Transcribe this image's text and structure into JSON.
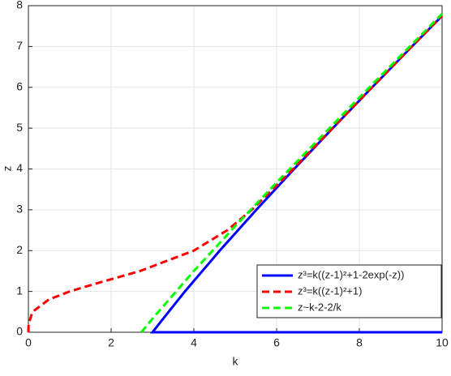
{
  "chart_data": {
    "type": "line",
    "x_label": "k",
    "y_label": "z",
    "xlim": [
      0,
      10
    ],
    "ylim": [
      0,
      8
    ],
    "xticks": [
      0,
      2,
      4,
      6,
      8,
      10
    ],
    "yticks": [
      0,
      1,
      2,
      3,
      4,
      5,
      6,
      7,
      8
    ],
    "grid": true,
    "legend": "lower right",
    "series": [
      {
        "name": "z³=k((z-1)²+1-2exp(-z))",
        "color": "#0000ff",
        "dash": "solid",
        "x": [
          10,
          3,
          3.39,
          3.785,
          4.626,
          5.51,
          6.424,
          7.359,
          8.309,
          9.27,
          10
        ],
        "values": [
          0,
          0,
          0.5,
          1,
          2,
          3,
          4,
          5,
          6,
          7,
          7.75
        ]
      },
      {
        "name": "z³=k((z-1)²+1)",
        "color": "#ff0000",
        "dash": "dashed",
        "x": [
          0,
          0.0049,
          0.1,
          0.492,
          1,
          1.66,
          2.7,
          4,
          4.81,
          5.4,
          6.4,
          7.35,
          8.31,
          9.27,
          10
        ],
        "values": [
          0,
          0.2,
          0.5,
          0.8,
          1,
          1.2,
          1.5,
          2,
          2.5,
          3,
          4,
          5,
          6,
          7,
          7.75
        ]
      },
      {
        "name": "z~k-2-2/k",
        "color": "#00ff00",
        "dash": "dashed",
        "x": [
          2.732,
          3,
          4,
          5,
          6,
          8,
          10
        ],
        "values": [
          0,
          0.333,
          1.5,
          2.6,
          3.667,
          5.75,
          7.8
        ]
      }
    ]
  }
}
